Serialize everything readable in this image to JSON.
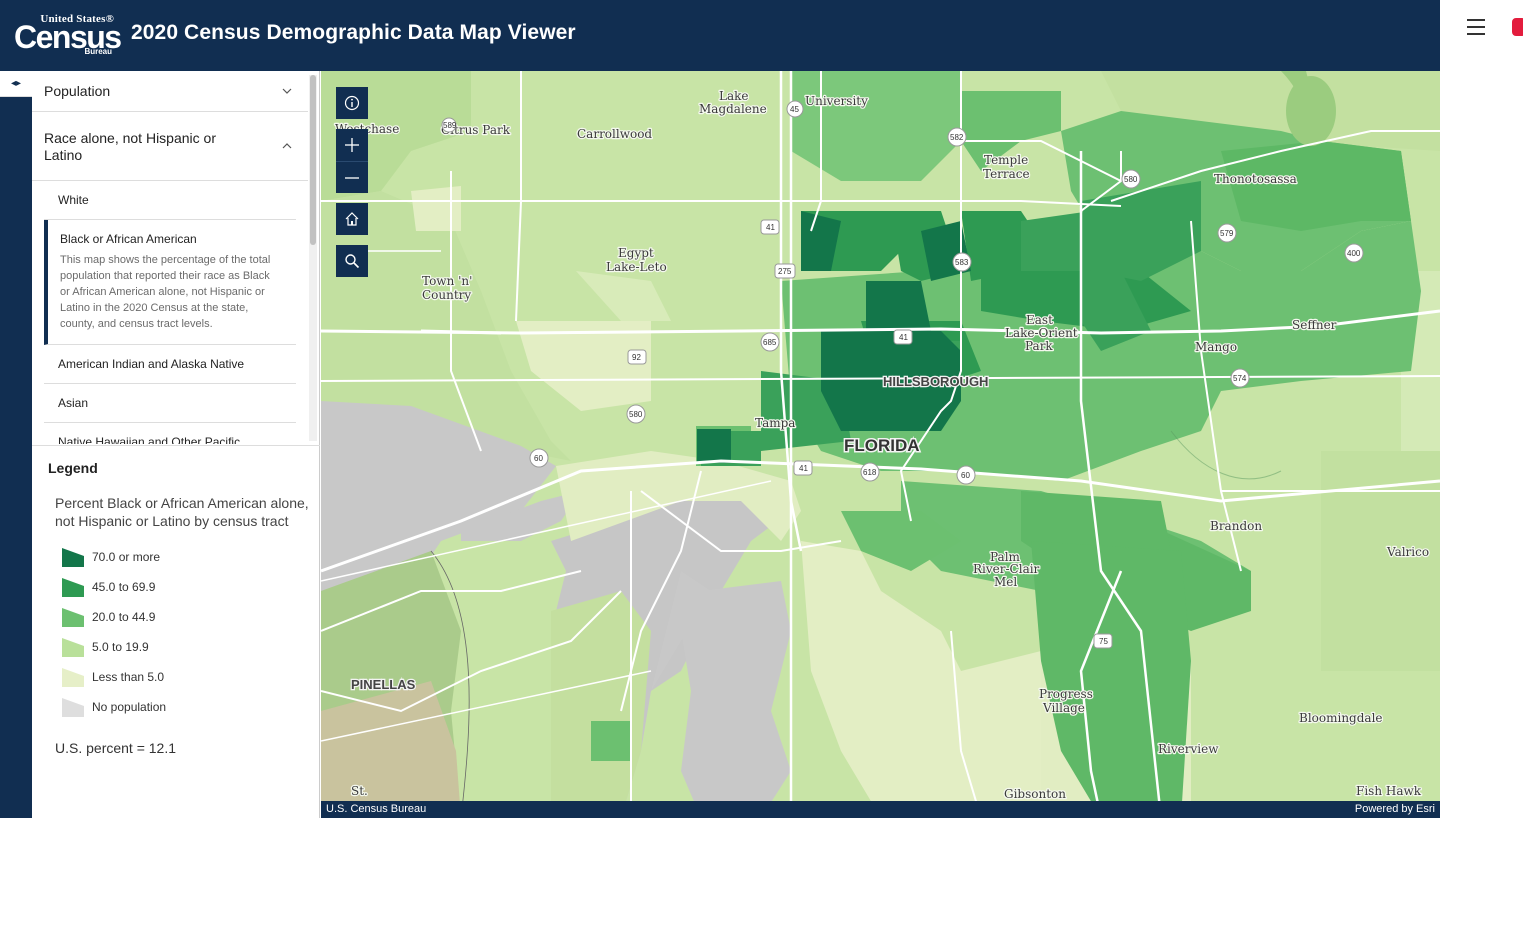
{
  "header": {
    "logo_line1": "United States®",
    "logo_line2": "Census",
    "logo_line3": "Bureau",
    "title": "2020 Census Demographic Data Map Viewer",
    "menu_icon": "hamburger-menu-icon",
    "accent_color": "#e31c3d",
    "background_color": "#112e51"
  },
  "rail": {
    "toggle_icon": "expand-collapse-arrows-icon"
  },
  "panel": {
    "categories": [
      {
        "label": "Population",
        "state": "collapsed"
      },
      {
        "label": "Race alone, not Hispanic or Latino",
        "state": "expanded"
      }
    ],
    "sub_items": [
      {
        "label": "White"
      },
      {
        "label": "Black or African American",
        "selected": true,
        "description": "This map shows the percentage of the total population that reported their race as Black or African American alone, not Hispanic or Latino in the 2020 Census at the state, county, and census tract levels."
      },
      {
        "label": "American Indian and Alaska Native"
      },
      {
        "label": "Asian"
      },
      {
        "label": "Native Hawaiian and Other Pacific"
      }
    ]
  },
  "legend": {
    "title": "Legend",
    "layer_title": "Percent Black or African American alone, not Hispanic or Latino by census tract",
    "classes": [
      {
        "label": "70.0 or more",
        "color": "#13764a"
      },
      {
        "label": "45.0 to 69.9",
        "color": "#2e9a52"
      },
      {
        "label": "20.0 to 44.9",
        "color": "#6cc070"
      },
      {
        "label": "5.0 to 19.9",
        "color": "#b9e09a"
      },
      {
        "label": "Less than 5.0",
        "color": "#e6efc8"
      },
      {
        "label": "No population",
        "color": "#dedede"
      }
    ],
    "us_percent": "U.S. percent = 12.1"
  },
  "map": {
    "controls": [
      "info-icon",
      "zoom-in-icon",
      "zoom-out-icon",
      "home-icon",
      "search-icon"
    ],
    "labels": {
      "westchase": "Westchase",
      "citrus_park": "Citrus Park",
      "carrollwood": "Carrollwood",
      "lake_magdalene_1": "Lake",
      "lake_magdalene_2": "Magdalene",
      "university": "University",
      "temple_terrace_1": "Temple",
      "temple_terrace_2": "Terrace",
      "thonotosassa": "Thonotosassa",
      "egypt_1": "Egypt",
      "egypt_2": "Lake-Leto",
      "town_n_country_1": "Town 'n'",
      "town_n_country_2": "Country",
      "east_lake_1": "East",
      "east_lake_2": "Lake-Orient",
      "east_lake_3": "Park",
      "seffner": "Seffner",
      "mango": "Mango",
      "hillsborough": "HILLSBOROUGH",
      "tampa": "Tampa",
      "florida": "FLORIDA",
      "brandon": "Brandon",
      "valrico": "Valrico",
      "palm_river_1": "Palm",
      "palm_river_2": "River-Clair",
      "palm_river_3": "Mel",
      "pinellas": "PINELLAS",
      "progress_village_1": "Progress",
      "progress_village_2": "Village",
      "bloomingdale": "Bloomingdale",
      "riverview": "Riverview",
      "fish_hawk": "Fish Hawk",
      "gibsonton": "Gibsonton",
      "st_pete": "St."
    },
    "shields": {
      "s589": "589",
      "s45": "45",
      "s582": "582",
      "s580a": "580",
      "s579": "579",
      "s400": "400",
      "s41a": "41",
      "s275": "275",
      "s583": "583",
      "s685": "685",
      "s92": "92",
      "s41b": "41",
      "s574": "574",
      "s580b": "580",
      "s60a": "60",
      "s41c": "41",
      "s618": "618",
      "s60b": "60",
      "s75": "75"
    },
    "attribution_left": "U.S. Census Bureau",
    "attribution_right": "Powered by Esri"
  }
}
